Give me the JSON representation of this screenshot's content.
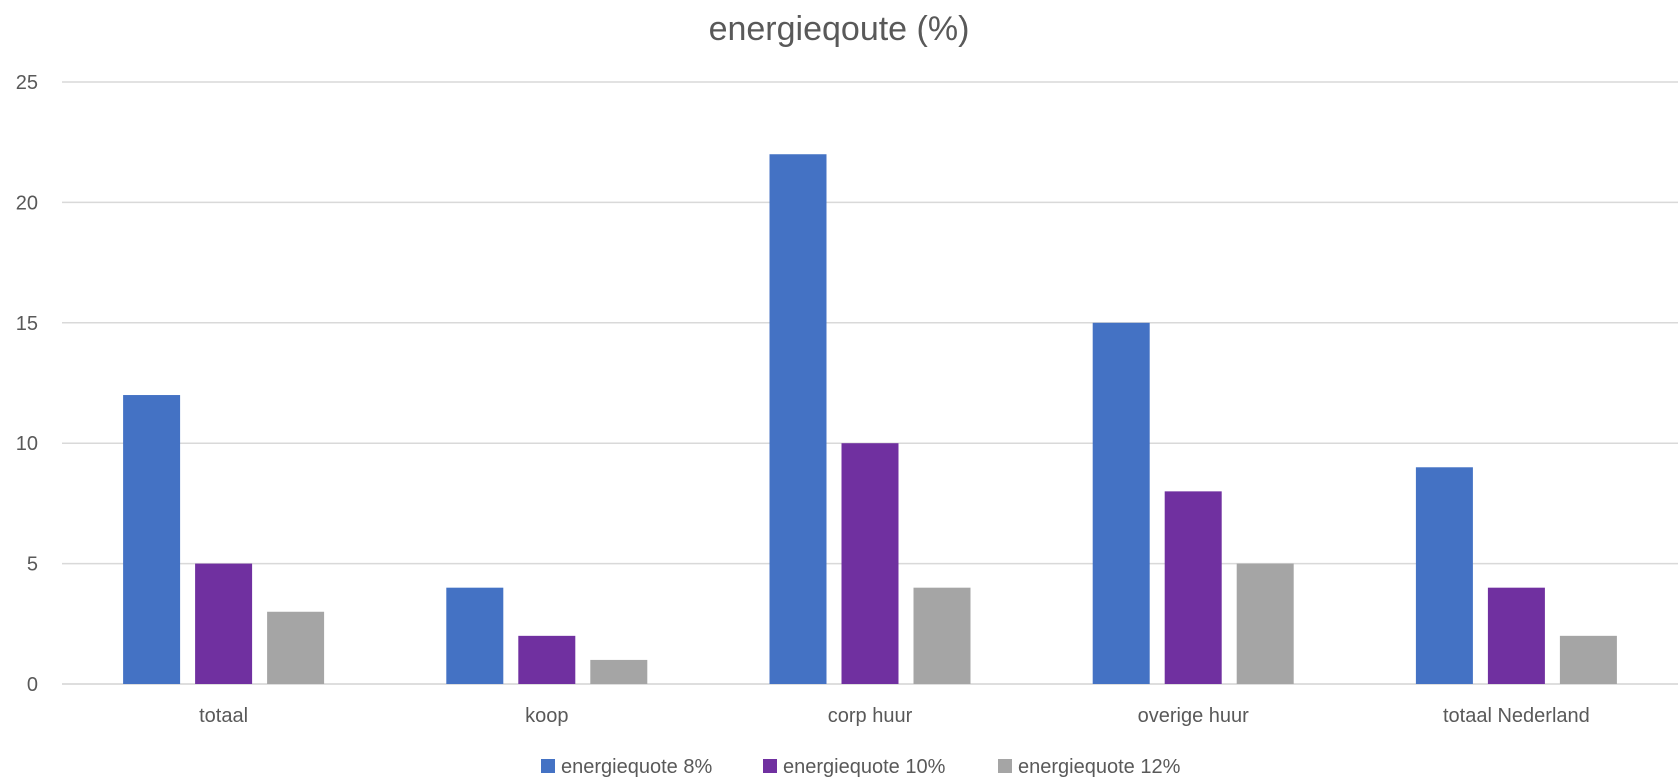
{
  "chart_data": {
    "type": "bar",
    "title": "energieqoute  (%)",
    "xlabel": "",
    "ylabel": "",
    "ylim": [
      0,
      25
    ],
    "yticks": [
      0,
      5,
      10,
      15,
      20,
      25
    ],
    "grid": true,
    "legend_position": "bottom",
    "categories": [
      "totaal",
      "koop",
      "corp huur",
      "overige huur",
      "totaal Nederland"
    ],
    "series": [
      {
        "name": "energiequote 8%",
        "color": "#4472c4",
        "values": [
          12,
          4,
          22,
          15,
          9
        ]
      },
      {
        "name": "energiequote 10%",
        "color": "#7030a0",
        "values": [
          5,
          2,
          10,
          8,
          4
        ]
      },
      {
        "name": "energiequote 12%",
        "color": "#a5a5a5",
        "values": [
          3,
          1,
          4,
          5,
          2
        ]
      }
    ]
  }
}
